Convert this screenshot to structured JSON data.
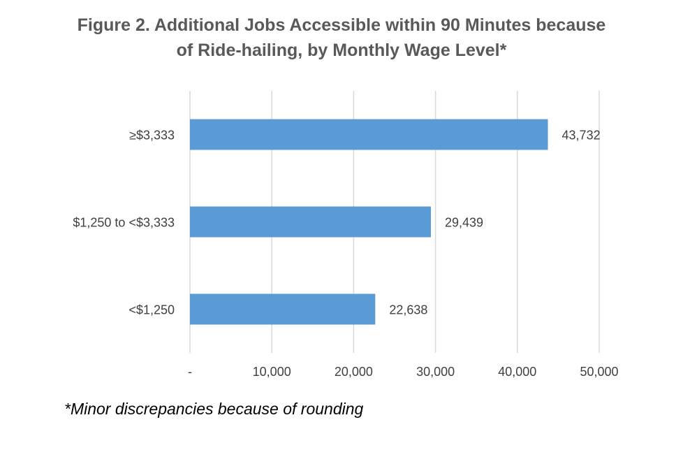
{
  "chart_data": {
    "type": "bar",
    "orientation": "horizontal",
    "title": "Figure 2. Additional Jobs Accessible within 90 Minutes because of Ride-hailing, by Monthly Wage Level*",
    "title_lines": [
      "Figure 2. Additional Jobs Accessible within 90 Minutes because",
      "of Ride-hailing, by Monthly Wage Level*"
    ],
    "categories": [
      "≥$3,333",
      "$1,250 to <$3,333",
      "<$1,250"
    ],
    "values": [
      43732,
      29439,
      22638
    ],
    "data_labels": [
      "43,732",
      "29,439",
      "22,638"
    ],
    "xlim": [
      0,
      50000
    ],
    "x_ticks": [
      0,
      10000,
      20000,
      30000,
      40000,
      50000
    ],
    "x_tick_labels": [
      "-",
      "10,000",
      "20,000",
      "30,000",
      "40,000",
      "50,000"
    ],
    "xlabel": "",
    "ylabel": "",
    "grid": "vertical",
    "legend": "none",
    "bar_color": "#5b9bd5",
    "footnote": "*Minor discrepancies because of rounding"
  }
}
